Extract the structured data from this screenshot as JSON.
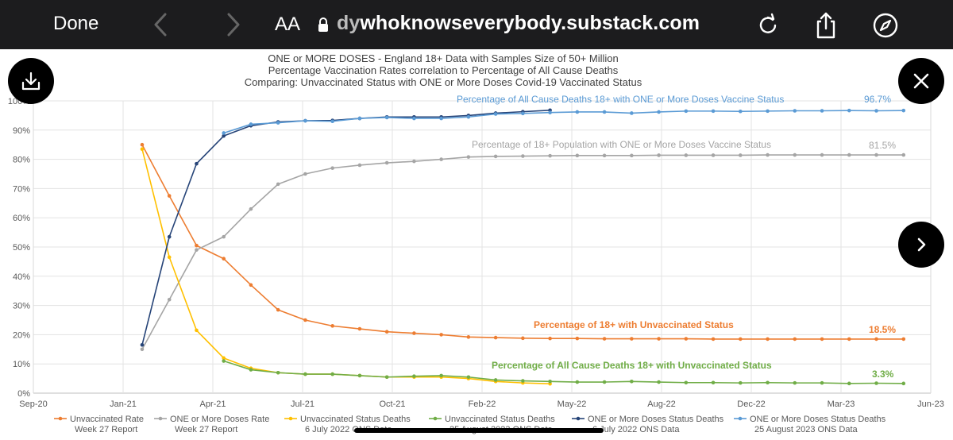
{
  "browser": {
    "done_label": "Done",
    "text_size_label": "AA",
    "url_prefix_faded": "dy",
    "url_text": "whoknowseverybody.substack.com"
  },
  "colors": {
    "unvax_rate": "#ed7d31",
    "onedose_rate": "#a5a5a5",
    "unvax_deaths_july": "#ffc000",
    "unvax_deaths_aug": "#70ad47",
    "onedose_deaths_july": "#264478",
    "onedose_deaths_aug": "#5b9bd5"
  },
  "chart_data": {
    "type": "line",
    "title": "ONE or MORE DOSES - England 18+ Data with Samples Size of 50+ Million",
    "subtitle": "Percentage Vaccination Rates correlation to Percentage of All Cause Deaths",
    "subtitle2": "Comparing: Unvaccinated Status with ONE or More Doses Covid-19 Vaccinated Status",
    "xlabel": "",
    "ylabel": "",
    "xlim": [
      "2020-09-01",
      "2023-06-01"
    ],
    "ylim": [
      0,
      100
    ],
    "x_tick_labels": [
      "Sep-20",
      "Jan-21",
      "Apr-21",
      "Jul-21",
      "Oct-21",
      "Feb-22",
      "May-22",
      "Aug-22",
      "Dec-22",
      "Mar-23",
      "Jun-23"
    ],
    "y_tick_labels": [
      "0%",
      "10%",
      "20%",
      "30%",
      "40%",
      "50%",
      "60%",
      "70%",
      "80%",
      "90%",
      "100%"
    ],
    "grid": true,
    "legend_position": "bottom",
    "series": [
      {
        "name": "Unvaccinated Rate Week 27 Report",
        "legend_line1": "Unvaccinated Rate",
        "legend_line2": "Week 27 Report",
        "color_key": "unvax_rate",
        "x": [
          "2021-01",
          "2021-02",
          "2021-03",
          "2021-04",
          "2021-05",
          "2021-06",
          "2021-07",
          "2021-08",
          "2021-09",
          "2021-10",
          "2021-11",
          "2021-12",
          "2022-01",
          "2022-02",
          "2022-03",
          "2022-04",
          "2022-05",
          "2022-06",
          "2022-07",
          "2022-08",
          "2022-09",
          "2022-10",
          "2022-11",
          "2022-12",
          "2023-01",
          "2023-02",
          "2023-03",
          "2023-04",
          "2023-05"
        ],
        "y": [
          85,
          67.5,
          50.5,
          46,
          37,
          28.5,
          25,
          23,
          22,
          21,
          20.5,
          20,
          19.2,
          19,
          18.8,
          18.7,
          18.7,
          18.6,
          18.6,
          18.6,
          18.6,
          18.5,
          18.5,
          18.5,
          18.5,
          18.5,
          18.5,
          18.5,
          18.5
        ]
      },
      {
        "name": "ONE or More Doses Rate Week 27 Report",
        "legend_line1": "ONE or More Doses Rate",
        "legend_line2": "Week 27 Report",
        "color_key": "onedose_rate",
        "x": [
          "2021-01",
          "2021-02",
          "2021-03",
          "2021-04",
          "2021-05",
          "2021-06",
          "2021-07",
          "2021-08",
          "2021-09",
          "2021-10",
          "2021-11",
          "2021-12",
          "2022-01",
          "2022-02",
          "2022-03",
          "2022-04",
          "2022-05",
          "2022-06",
          "2022-07",
          "2022-08",
          "2022-09",
          "2022-10",
          "2022-11",
          "2022-12",
          "2023-01",
          "2023-02",
          "2023-03",
          "2023-04",
          "2023-05"
        ],
        "y": [
          15,
          32,
          49,
          53.5,
          63,
          71.5,
          75,
          77,
          78,
          78.8,
          79.3,
          80,
          80.8,
          81,
          81.1,
          81.2,
          81.3,
          81.3,
          81.3,
          81.4,
          81.4,
          81.4,
          81.4,
          81.5,
          81.5,
          81.5,
          81.5,
          81.5,
          81.5
        ]
      },
      {
        "name": "Unvaccinated Status Deaths 6 July 2022 ONS Data",
        "legend_line1": "Unvaccinated Status Deaths",
        "legend_line2": "6 July 2022 ONS Data",
        "color_key": "unvax_deaths_july",
        "x": [
          "2021-01",
          "2021-02",
          "2021-03",
          "2021-04",
          "2021-05",
          "2021-06",
          "2021-07",
          "2021-08",
          "2021-09",
          "2021-10",
          "2021-11",
          "2021-12",
          "2022-01",
          "2022-02",
          "2022-03",
          "2022-04"
        ],
        "y": [
          83.5,
          46.5,
          21.5,
          12,
          8.5,
          7,
          6.5,
          6.5,
          6,
          5.5,
          5.5,
          5.5,
          5,
          4,
          3.5,
          3.2
        ]
      },
      {
        "name": "Unvaccinated Status Deaths 25 August 2023 ONS Data",
        "legend_line1": "Unvaccinated Status Deaths",
        "legend_line2": "25 August 2023 ONS Data",
        "color_key": "unvax_deaths_aug",
        "x": [
          "2021-04",
          "2021-05",
          "2021-06",
          "2021-07",
          "2021-08",
          "2021-09",
          "2021-10",
          "2021-11",
          "2021-12",
          "2022-01",
          "2022-02",
          "2022-03",
          "2022-04",
          "2022-05",
          "2022-06",
          "2022-07",
          "2022-08",
          "2022-09",
          "2022-10",
          "2022-11",
          "2022-12",
          "2023-01",
          "2023-02",
          "2023-03",
          "2023-04",
          "2023-05"
        ],
        "y": [
          11,
          8,
          7,
          6.5,
          6.5,
          6,
          5.5,
          5.8,
          6,
          5.5,
          4.5,
          4.2,
          4,
          3.8,
          3.8,
          4,
          3.8,
          3.6,
          3.6,
          3.5,
          3.6,
          3.5,
          3.5,
          3.3,
          3.4,
          3.3
        ]
      },
      {
        "name": "ONE or More Doses Status Deaths 6 July 2022 ONS Data",
        "legend_line1": "ONE or More Doses Status Deaths",
        "legend_line2": "6 July 2022 ONS Data",
        "color_key": "onedose_deaths_july",
        "x": [
          "2021-01",
          "2021-02",
          "2021-03",
          "2021-04",
          "2021-05",
          "2021-06",
          "2021-07",
          "2021-08",
          "2021-09",
          "2021-10",
          "2021-11",
          "2021-12",
          "2022-01",
          "2022-02",
          "2022-03",
          "2022-04"
        ],
        "y": [
          16.5,
          53.5,
          78.5,
          88,
          91.5,
          92.8,
          93.2,
          93.3,
          94,
          94.5,
          94.5,
          94.5,
          95,
          95.8,
          96.3,
          96.8
        ]
      },
      {
        "name": "ONE or More Doses Status Deaths 25 August 2023 ONS Data",
        "legend_line1": "ONE or More Doses Status Deaths",
        "legend_line2": "25 August 2023 ONS Data",
        "color_key": "onedose_deaths_aug",
        "x": [
          "2021-04",
          "2021-05",
          "2021-06",
          "2021-07",
          "2021-08",
          "2021-09",
          "2021-10",
          "2021-11",
          "2021-12",
          "2022-01",
          "2022-02",
          "2022-03",
          "2022-04",
          "2022-05",
          "2022-06",
          "2022-07",
          "2022-08",
          "2022-09",
          "2022-10",
          "2022-11",
          "2022-12",
          "2023-01",
          "2023-02",
          "2023-03",
          "2023-04",
          "2023-05"
        ],
        "y": [
          89,
          92,
          92.5,
          93.2,
          93,
          94,
          94.3,
          94,
          94,
          94.5,
          95.5,
          95.7,
          96,
          96.2,
          96.2,
          95.8,
          96.2,
          96.5,
          96.5,
          96.4,
          96.5,
          96.6,
          96.6,
          96.7,
          96.6,
          96.7
        ]
      }
    ],
    "annotations": [
      {
        "text": "Percentage of All Cause Deaths 18+ with ONE or More Doses Vaccine Status",
        "color_key": "onedose_deaths_aug"
      },
      {
        "text": "96.7%",
        "color_key": "onedose_deaths_aug"
      },
      {
        "text": "Percentage of 18+ Population  with ONE or More Doses Vaccine Status",
        "color_key": "onedose_rate"
      },
      {
        "text": "81.5%",
        "color_key": "onedose_rate"
      },
      {
        "text": "Percentage of 18+ with Unvaccinated Status",
        "color_key": "unvax_rate"
      },
      {
        "text": "18.5%",
        "color_key": "unvax_rate"
      },
      {
        "text": "Percentage of All Cause Deaths 18+ with Unvaccinated Status",
        "color_key": "unvax_deaths_aug"
      },
      {
        "text": "3.3%",
        "color_key": "unvax_deaths_aug"
      }
    ]
  }
}
